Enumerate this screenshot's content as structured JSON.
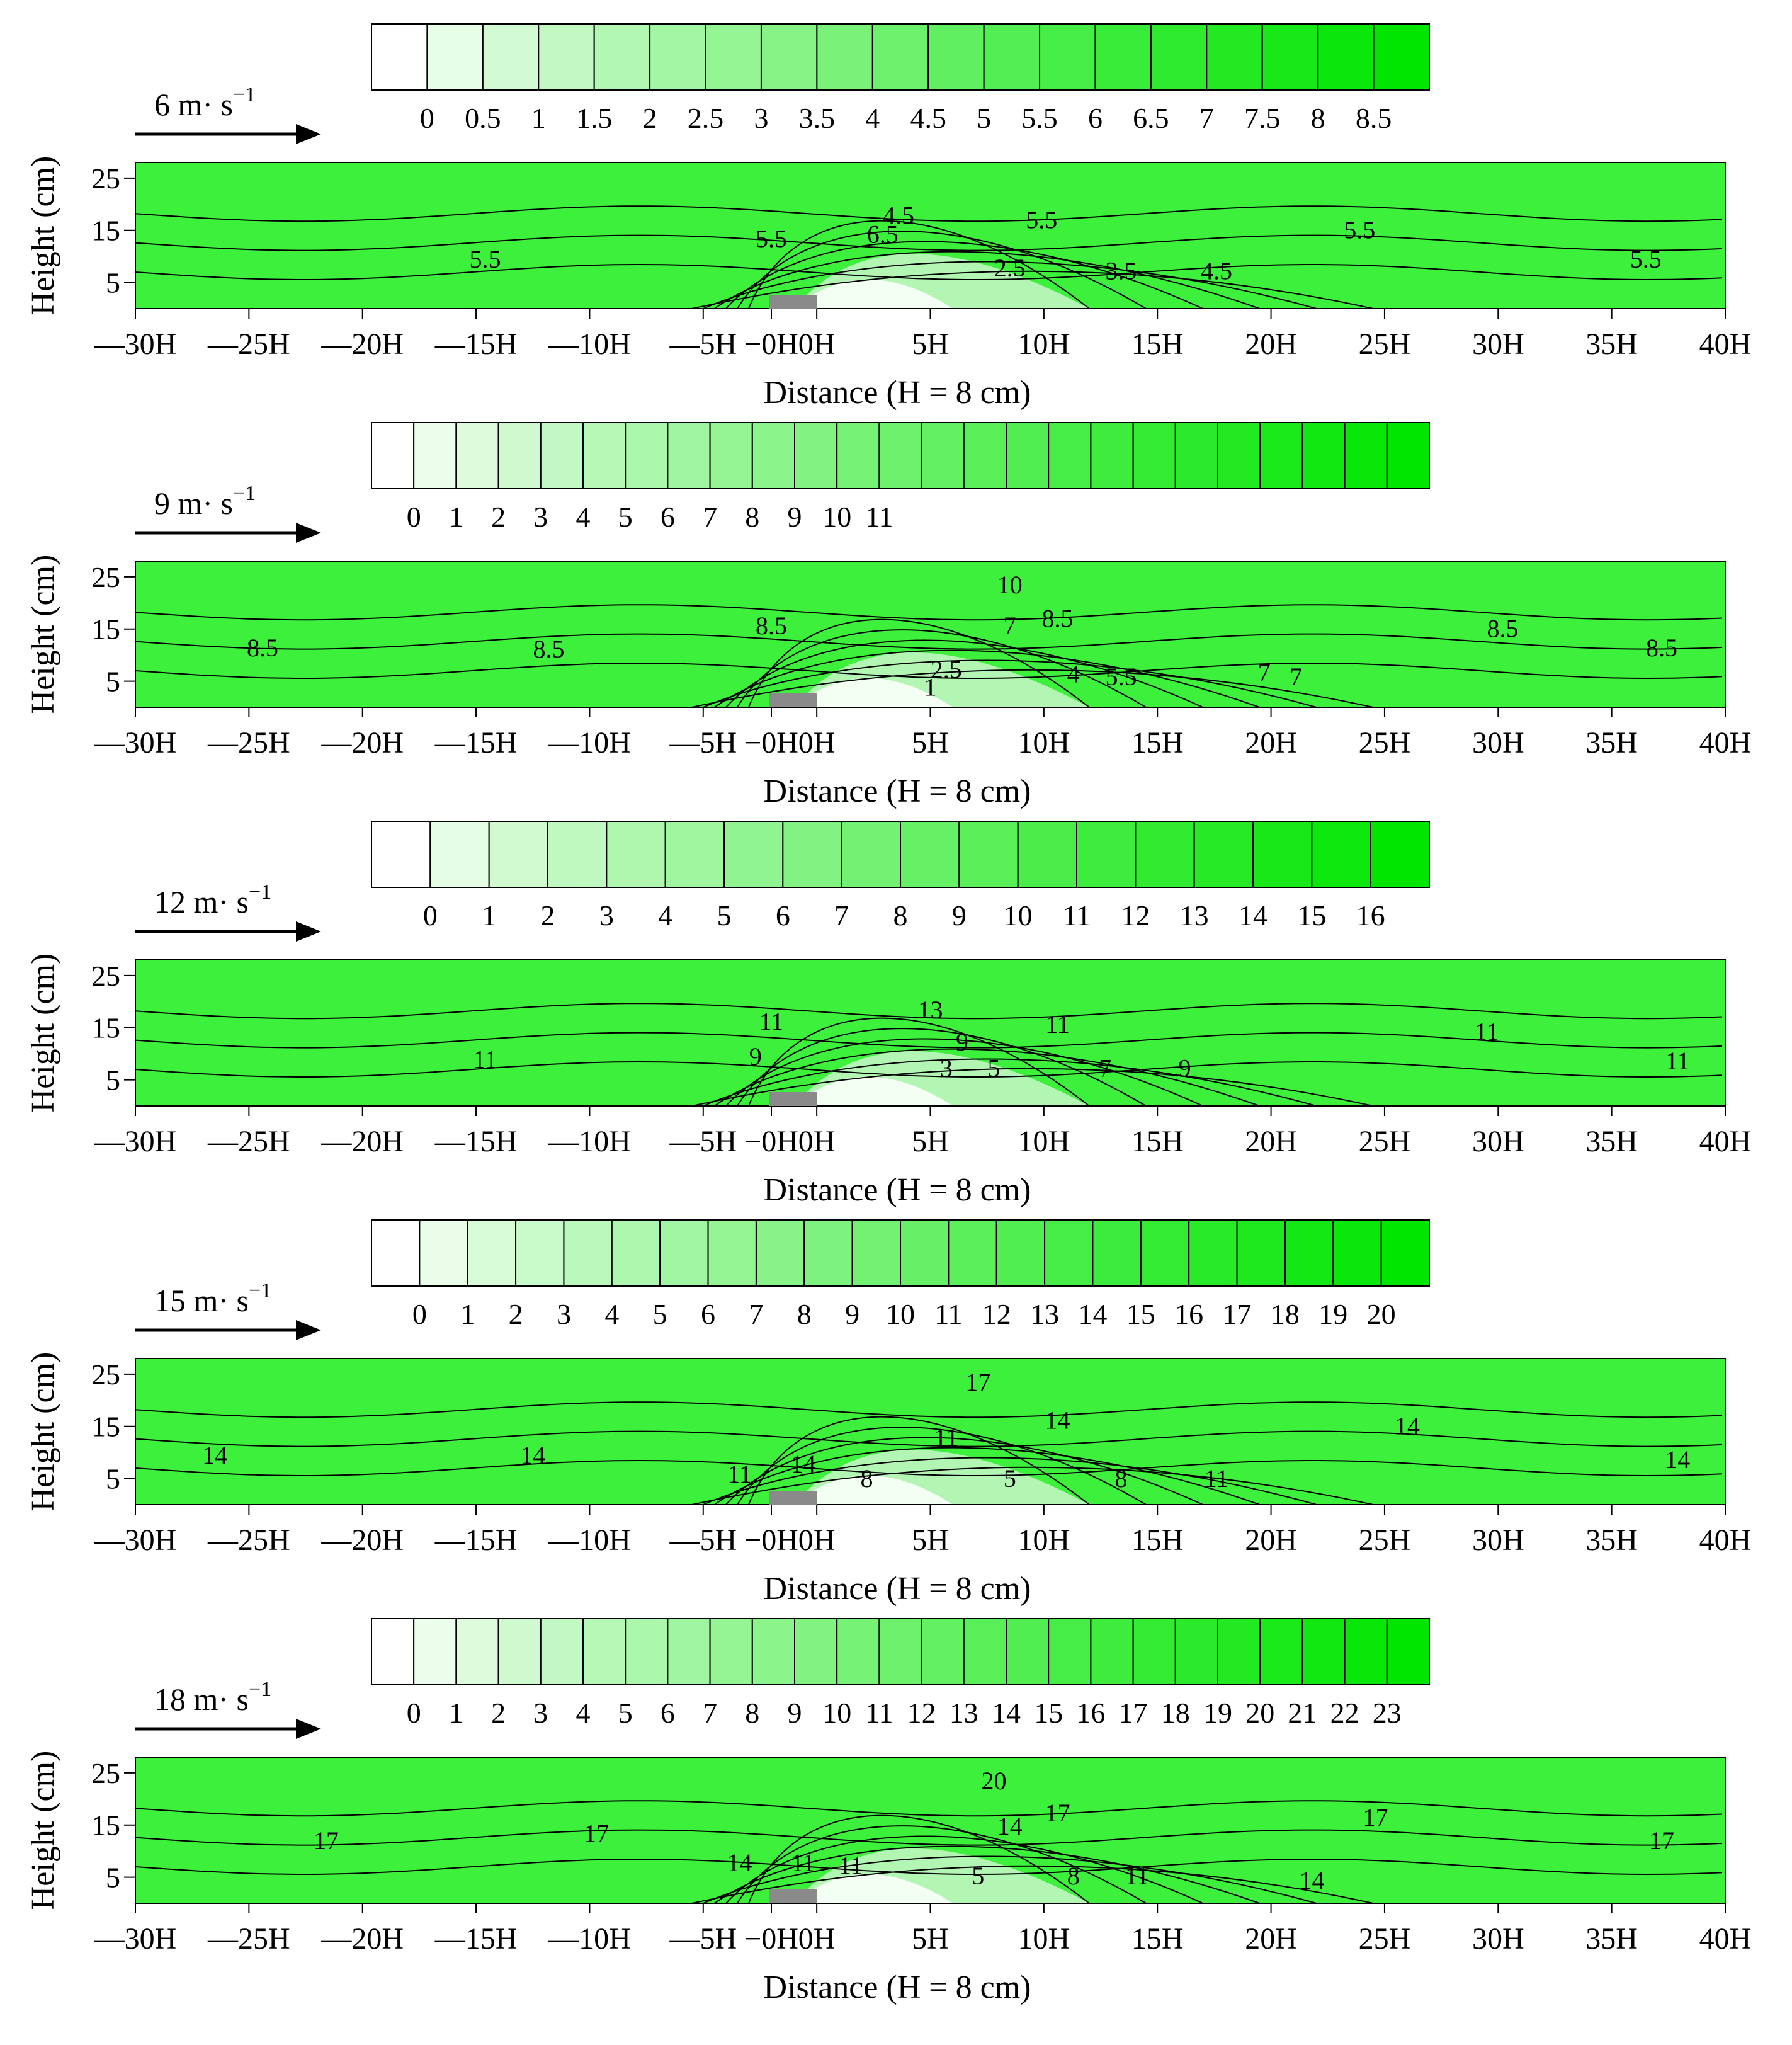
{
  "figure": {
    "colors": {
      "scale_low": "#ffffff",
      "scale_high": "#00e600",
      "plot_background": "#3cf03c",
      "obstacle": "#8a8a8a",
      "contour_line": "#000000"
    },
    "icons": {
      "wind_arrow": "right-arrow-icon",
      "obstacle": "triangle-obstacle-icon"
    }
  },
  "chart_data": [
    {
      "type": "heatmap",
      "panel_label": "6 m· s",
      "panel_label_exp": "−1",
      "wind_speed_m_s": 6,
      "colorbar": {
        "ticks": [
          "0",
          "0.5",
          "1",
          "1.5",
          "2",
          "2.5",
          "3",
          "3.5",
          "4",
          "4.5",
          "5",
          "5.5",
          "6",
          "6.5",
          "7",
          "7.5",
          "8",
          "8.5"
        ],
        "bins": 19
      },
      "xticks": [
        "—30H",
        "—25H",
        "—20H",
        "—15H",
        "—10H",
        "—5H",
        "−0H",
        "0H",
        "5H",
        "10H",
        "15H",
        "20H",
        "25H",
        "30H",
        "35H",
        "40H"
      ],
      "yticks": [
        "25",
        "15",
        "5"
      ],
      "ylim": [
        0,
        28
      ],
      "xlabel": "Distance (H = 8 cm)",
      "ylabel": "Height (cm)",
      "contour_labels": [
        "5.5",
        "5.5",
        "6.5",
        "4.5",
        "5.5",
        "2.5",
        "3.5",
        "4.5",
        "5.5",
        "5.5"
      ]
    },
    {
      "type": "heatmap",
      "panel_label": "9 m· s",
      "panel_label_exp": "−1",
      "wind_speed_m_s": 9,
      "colorbar": {
        "ticks": [
          "0",
          "1",
          "2",
          "3",
          "4",
          "5",
          "6",
          "7",
          "8",
          "9",
          "10",
          "11"
        ],
        "bins": 25
      },
      "xticks": [
        "—30H",
        "—25H",
        "—20H",
        "—15H",
        "—10H",
        "—5H",
        "−0H",
        "0H",
        "5H",
        "10H",
        "15H",
        "20H",
        "25H",
        "30H",
        "35H",
        "40H"
      ],
      "yticks": [
        "25",
        "15",
        "5"
      ],
      "ylim": [
        0,
        28
      ],
      "xlabel": "Distance (H = 8 cm)",
      "ylabel": "Height (cm)",
      "contour_labels": [
        "8.5",
        "8.5",
        "8.5",
        "7",
        "10",
        "8.5",
        "7",
        "2.5",
        "4",
        "5.5",
        "1",
        "7",
        "8.5",
        "8.5"
      ]
    },
    {
      "type": "heatmap",
      "panel_label": "12 m· s",
      "panel_label_exp": "−1",
      "wind_speed_m_s": 12,
      "colorbar": {
        "ticks": [
          "0",
          "1",
          "2",
          "3",
          "4",
          "5",
          "6",
          "7",
          "8",
          "9",
          "10",
          "11",
          "12",
          "13",
          "14",
          "15",
          "16"
        ],
        "bins": 18
      },
      "xticks": [
        "—30H",
        "—25H",
        "—20H",
        "—15H",
        "—10H",
        "—5H",
        "−0H",
        "0H",
        "5H",
        "10H",
        "15H",
        "20H",
        "25H",
        "30H",
        "35H",
        "40H"
      ],
      "yticks": [
        "25",
        "15",
        "5"
      ],
      "ylim": [
        0,
        28
      ],
      "xlabel": "Distance (H = 8 cm)",
      "ylabel": "Height (cm)",
      "contour_labels": [
        "11",
        "11",
        "9",
        "13",
        "9",
        "11",
        "3",
        "5",
        "7",
        "9",
        "11",
        "11"
      ]
    },
    {
      "type": "heatmap",
      "panel_label": "15 m· s",
      "panel_label_exp": "−1",
      "wind_speed_m_s": 15,
      "colorbar": {
        "ticks": [
          "0",
          "1",
          "2",
          "3",
          "4",
          "5",
          "6",
          "7",
          "8",
          "9",
          "10",
          "11",
          "12",
          "13",
          "14",
          "15",
          "16",
          "17",
          "18",
          "19",
          "20"
        ],
        "bins": 22
      },
      "xticks": [
        "—30H",
        "—25H",
        "—20H",
        "—15H",
        "—10H",
        "—5H",
        "−0H",
        "0H",
        "5H",
        "10H",
        "15H",
        "20H",
        "25H",
        "30H",
        "35H",
        "40H"
      ],
      "yticks": [
        "25",
        "15",
        "5"
      ],
      "ylim": [
        0,
        28
      ],
      "xlabel": "Distance (H = 8 cm)",
      "ylabel": "Height (cm)",
      "contour_labels": [
        "14",
        "14",
        "11",
        "14",
        "8",
        "11",
        "17",
        "14",
        "5",
        "8",
        "11",
        "14",
        "14"
      ]
    },
    {
      "type": "heatmap",
      "panel_label": "18 m· s",
      "panel_label_exp": "−1",
      "wind_speed_m_s": 18,
      "colorbar": {
        "ticks": [
          "0",
          "1",
          "2",
          "3",
          "4",
          "5",
          "6",
          "7",
          "8",
          "9",
          "10",
          "11",
          "12",
          "13",
          "14",
          "15",
          "16",
          "17",
          "18",
          "19",
          "20",
          "21",
          "22",
          "23"
        ],
        "bins": 25
      },
      "xticks": [
        "—30H",
        "—25H",
        "—20H",
        "—15H",
        "—10H",
        "—5H",
        "−0H",
        "0H",
        "5H",
        "10H",
        "15H",
        "20H",
        "25H",
        "30H",
        "35H",
        "40H"
      ],
      "yticks": [
        "25",
        "15",
        "5"
      ],
      "ylim": [
        0,
        28
      ],
      "xlabel": "Distance (H = 8 cm)",
      "ylabel": "Height (cm)",
      "contour_labels": [
        "17",
        "17",
        "14",
        "11",
        "11",
        "20",
        "14",
        "17",
        "5",
        "8",
        "11",
        "14",
        "17",
        "17"
      ]
    }
  ]
}
